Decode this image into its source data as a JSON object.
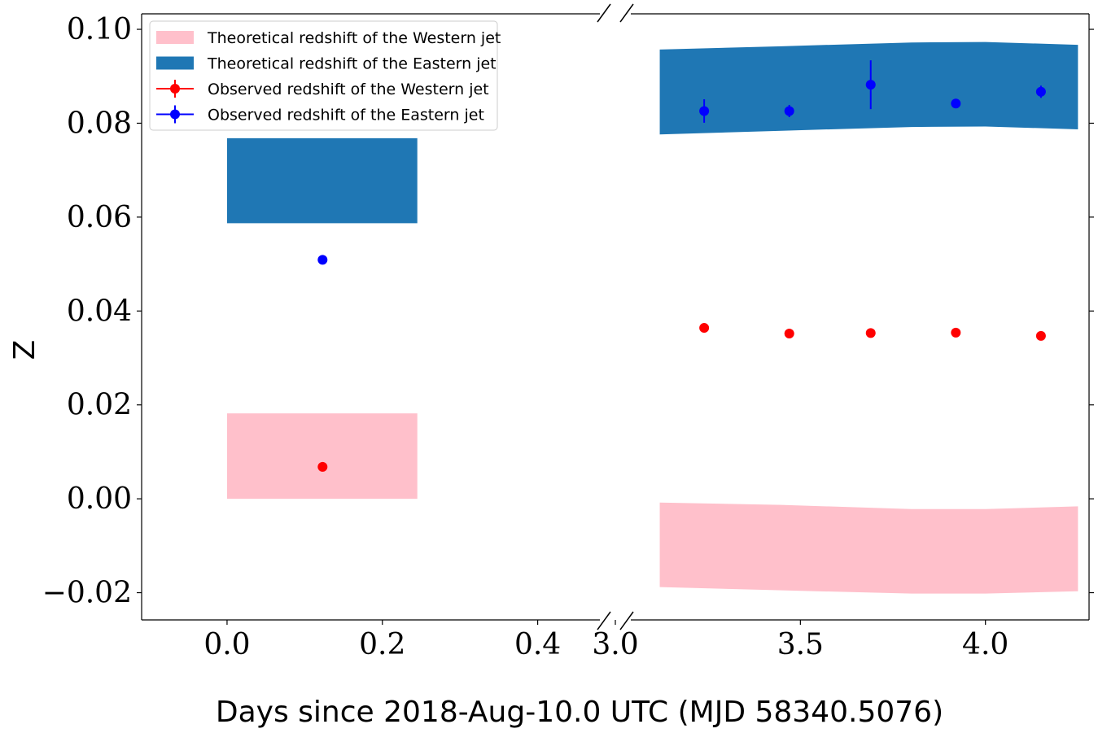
{
  "chart_data": {
    "type": "scatter",
    "title": "",
    "xlabel": "Days since 2018-Aug-10.0 UTC (MJD 58340.5076)",
    "ylabel": "Z",
    "ylim": [
      -0.0258,
      0.1033
    ],
    "x_break": true,
    "panels": [
      {
        "xlim": [
          -0.11,
          0.5
        ],
        "xticks": [
          0.0,
          0.2,
          0.4
        ],
        "xtick_labels": [
          "0.0",
          "0.2",
          "0.4"
        ]
      },
      {
        "xlim": [
          3.0,
          4.28
        ],
        "xticks": [
          3.0,
          3.5,
          4.0
        ],
        "xtick_labels": [
          "3.0",
          "3.5",
          "4.0"
        ]
      }
    ],
    "yticks": [
      -0.02,
      0.0,
      0.02,
      0.04,
      0.06,
      0.08,
      0.1
    ],
    "ytick_labels": [
      "−0.02",
      "0.00",
      "0.02",
      "0.04",
      "0.06",
      "0.08",
      "0.10"
    ],
    "legend_position": "top-left",
    "colors": {
      "western_band": "#ffc0cb",
      "eastern_band": "#1f77b4",
      "western_points": "#ff0000",
      "eastern_points": "#0000ff"
    },
    "bands": [
      {
        "name": "Theoretical redshift of the Western jet",
        "color": "#ffc0cb",
        "panel": 0,
        "x": [
          0.0,
          0.245
        ],
        "lower": [
          0.0,
          0.0
        ],
        "upper": [
          0.0182,
          0.0182
        ]
      },
      {
        "name": "Theoretical redshift of the Eastern jet",
        "color": "#1f77b4",
        "panel": 0,
        "x": [
          0.0,
          0.245
        ],
        "lower": [
          0.0587,
          0.0587
        ],
        "upper": [
          0.0768,
          0.0768
        ]
      },
      {
        "name": "Theoretical redshift of the Western jet",
        "color": "#ffc0cb",
        "panel": 1,
        "x": [
          3.12,
          3.45,
          3.8,
          4.0,
          4.25
        ],
        "lower": [
          -0.0188,
          -0.0195,
          -0.0202,
          -0.0202,
          -0.0197
        ],
        "upper": [
          -0.0008,
          -0.0013,
          -0.0022,
          -0.0022,
          -0.0016
        ]
      },
      {
        "name": "Theoretical redshift of the Eastern jet",
        "color": "#1f77b4",
        "panel": 1,
        "x": [
          3.12,
          3.45,
          3.8,
          4.0,
          4.25
        ],
        "lower": [
          0.0776,
          0.0784,
          0.0792,
          0.0793,
          0.0787
        ],
        "upper": [
          0.0957,
          0.0964,
          0.0972,
          0.0973,
          0.0967
        ]
      }
    ],
    "series": [
      {
        "name": "Observed redshift of the Western jet",
        "color": "#ff0000",
        "points": [
          {
            "panel": 0,
            "x": 0.123,
            "y": 0.0068,
            "err": 0.0
          },
          {
            "panel": 1,
            "x": 3.24,
            "y": 0.0364,
            "err": 0.0
          },
          {
            "panel": 1,
            "x": 3.47,
            "y": 0.0352,
            "err": 0.0
          },
          {
            "panel": 1,
            "x": 3.69,
            "y": 0.0353,
            "err": 0.0
          },
          {
            "panel": 1,
            "x": 3.92,
            "y": 0.0354,
            "err": 0.0
          },
          {
            "panel": 1,
            "x": 4.15,
            "y": 0.0347,
            "err": 0.0
          }
        ]
      },
      {
        "name": "Observed redshift of the Eastern jet",
        "color": "#0000ff",
        "points": [
          {
            "panel": 0,
            "x": 0.123,
            "y": 0.0509,
            "err": 0.0
          },
          {
            "panel": 1,
            "x": 3.24,
            "y": 0.0826,
            "err": 0.0025
          },
          {
            "panel": 1,
            "x": 3.47,
            "y": 0.0826,
            "err": 0.0013
          },
          {
            "panel": 1,
            "x": 3.69,
            "y": 0.0882,
            "err": 0.0052
          },
          {
            "panel": 1,
            "x": 3.92,
            "y": 0.0842,
            "err": 0.0
          },
          {
            "panel": 1,
            "x": 4.15,
            "y": 0.0867,
            "err": 0.0013
          }
        ]
      }
    ],
    "legend": [
      {
        "label": "Theoretical redshift of the Western jet",
        "kind": "patch",
        "color": "#ffc0cb"
      },
      {
        "label": "Theoretical redshift of the Eastern jet",
        "kind": "patch",
        "color": "#1f77b4"
      },
      {
        "label": "Observed redshift of the Western jet",
        "kind": "errorbar",
        "color": "#ff0000"
      },
      {
        "label": "Observed redshift of the Eastern jet",
        "kind": "errorbar",
        "color": "#0000ff"
      }
    ]
  }
}
